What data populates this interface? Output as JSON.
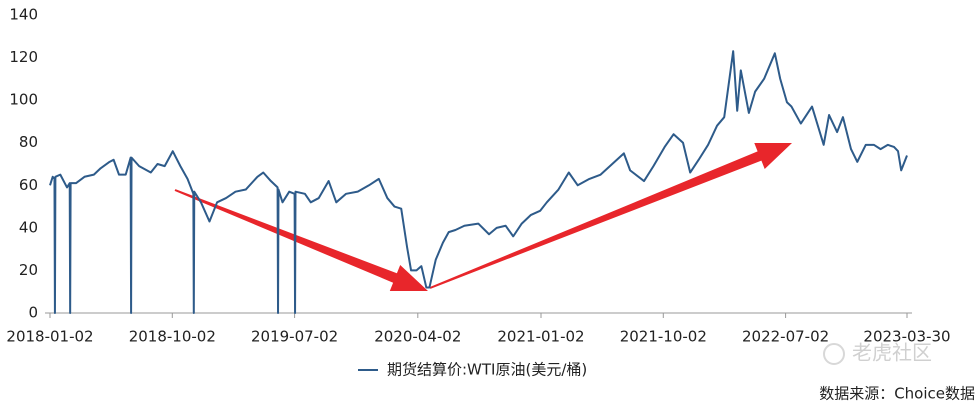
{
  "chart_data": {
    "type": "line",
    "x": [
      "2018-01-02",
      "2018-01-08",
      "2018-01-12",
      "2018-01-13",
      "2018-01-14",
      "2018-01-25",
      "2018-02-09",
      "2018-02-15",
      "2018-02-16",
      "2018-02-17",
      "2018-03-01",
      "2018-03-20",
      "2018-04-10",
      "2018-04-25",
      "2018-05-15",
      "2018-05-24",
      "2018-06-05",
      "2018-06-20",
      "2018-07-01",
      "2018-07-02",
      "2018-07-03",
      "2018-07-20",
      "2018-08-15",
      "2018-08-30",
      "2018-09-15",
      "2018-10-03",
      "2018-10-20",
      "2018-11-05",
      "2018-11-18",
      "2018-11-19",
      "2018-11-20",
      "2018-12-05",
      "2018-12-24",
      "2019-01-10",
      "2019-01-30",
      "2019-02-20",
      "2019-03-15",
      "2019-04-10",
      "2019-04-23",
      "2019-05-10",
      "2019-05-25",
      "2019-05-26",
      "2019-05-27",
      "2019-06-05",
      "2019-06-20",
      "2019-07-02",
      "2019-07-03",
      "2019-07-04",
      "2019-07-25",
      "2019-08-07",
      "2019-08-25",
      "2019-09-16",
      "2019-10-03",
      "2019-10-25",
      "2019-11-20",
      "2019-12-15",
      "2020-01-06",
      "2020-01-25",
      "2020-02-10",
      "2020-02-25",
      "2020-03-09",
      "2020-03-18",
      "2020-03-30",
      "2020-04-10",
      "2020-04-21",
      "2020-04-28",
      "2020-05-12",
      "2020-05-28",
      "2020-06-10",
      "2020-06-25",
      "2020-07-15",
      "2020-08-15",
      "2020-09-08",
      "2020-09-25",
      "2020-10-15",
      "2020-11-01",
      "2020-11-20",
      "2020-12-10",
      "2020-12-31",
      "2021-01-15",
      "2021-02-10",
      "2021-03-05",
      "2021-03-25",
      "2021-04-20",
      "2021-05-15",
      "2021-06-10",
      "2021-07-06",
      "2021-07-20",
      "2021-08-20",
      "2021-09-10",
      "2021-10-05",
      "2021-10-25",
      "2021-11-15",
      "2021-12-01",
      "2021-12-20",
      "2022-01-10",
      "2022-01-30",
      "2022-02-15",
      "2022-03-07",
      "2022-03-16",
      "2022-03-24",
      "2022-04-11",
      "2022-04-25",
      "2022-05-15",
      "2022-06-08",
      "2022-06-20",
      "2022-07-05",
      "2022-07-15",
      "2022-08-05",
      "2022-08-30",
      "2022-09-25",
      "2022-10-07",
      "2022-10-25",
      "2022-11-07",
      "2022-11-25",
      "2022-12-09",
      "2022-12-28",
      "2023-01-15",
      "2023-01-30",
      "2023-02-15",
      "2023-03-01",
      "2023-03-10",
      "2023-03-17",
      "2023-03-30"
    ],
    "series": [
      {
        "name": "期货结算价:WTI原油(美元/桶)",
        "color": "#2e5b8a",
        "values": [
          60,
          64,
          63,
          0,
          64,
          65,
          59,
          61,
          0,
          61,
          61,
          64,
          65,
          68,
          71,
          72,
          65,
          65,
          73,
          0,
          73,
          69,
          66,
          70,
          69,
          76,
          69,
          63,
          56,
          0,
          57,
          52,
          43,
          52,
          54,
          57,
          58,
          64,
          66,
          62,
          59,
          0,
          58,
          52,
          57,
          56,
          0,
          57,
          56,
          52,
          54,
          62,
          52,
          56,
          57,
          60,
          63,
          54,
          50,
          49,
          31,
          20,
          20,
          22,
          12,
          12,
          25,
          33,
          38,
          39,
          41,
          42,
          37,
          40,
          41,
          36,
          42,
          46,
          48,
          52,
          58,
          66,
          60,
          63,
          65,
          70,
          75,
          67,
          62,
          69,
          78,
          84,
          80,
          66,
          72,
          79,
          88,
          92,
          123,
          95,
          114,
          94,
          104,
          110,
          122,
          110,
          99,
          97,
          89,
          97,
          79,
          93,
          85,
          92,
          77,
          71,
          79,
          79,
          77,
          79,
          78,
          76,
          67,
          74
        ]
      }
    ],
    "xlim": [
      "2018-01-02",
      "2023-03-30"
    ],
    "xticks": [
      "2018-01-02",
      "2018-10-02",
      "2019-07-02",
      "2020-04-02",
      "2021-01-02",
      "2021-10-02",
      "2022-07-02",
      "2023-03-30"
    ],
    "ylim": [
      0,
      140
    ],
    "yticks": [
      0,
      20,
      40,
      60,
      80,
      100,
      120,
      140
    ],
    "grid": false,
    "legend": "bottom"
  },
  "source": "数据来源：Choice数据",
  "watermark": "老虎社区"
}
